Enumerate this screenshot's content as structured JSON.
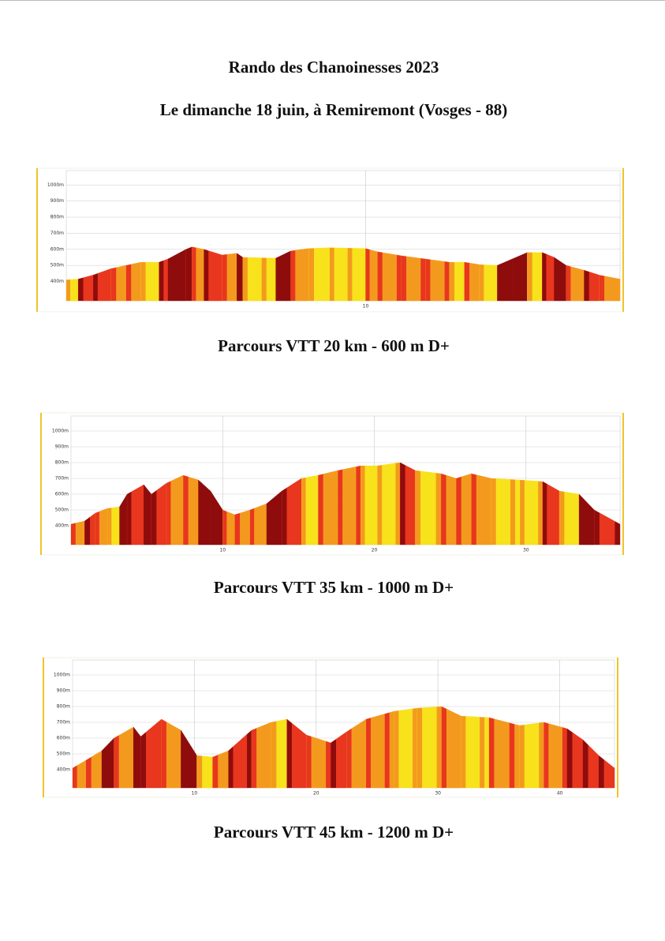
{
  "header": {
    "title": "Rando des Chanoinesses 2023",
    "subtitle": "Le dimanche 18 juin, à Remiremont (Vosges - 88)"
  },
  "chart_data": [
    {
      "type": "area",
      "title": "Parcours VTT 20 km - 600 m D+",
      "x": [
        0,
        0.4,
        0.9,
        1.5,
        2.0,
        2.5,
        3.1,
        3.4,
        4.0,
        4.2,
        4.6,
        5.2,
        5.7,
        5.9,
        7.0,
        7.5,
        8.1,
        8.8,
        10.0,
        10.4,
        11.2,
        12.0,
        12.8,
        13.3,
        13.8,
        14.4,
        14.9,
        15.4,
        15.9,
        16.3,
        16.7,
        17.3,
        17.8,
        18.5
      ],
      "values": [
        410,
        415,
        440,
        480,
        500,
        520,
        520,
        540,
        600,
        615,
        600,
        565,
        575,
        550,
        545,
        590,
        605,
        610,
        605,
        585,
        560,
        540,
        520,
        520,
        505,
        500,
        540,
        580,
        580,
        550,
        500,
        470,
        440,
        415
      ],
      "xlim": [
        0,
        18.5
      ],
      "xticks": [
        10
      ],
      "ylim": [
        280,
        1090
      ],
      "yticks": [
        {
          "value": 400,
          "label": "400m"
        },
        {
          "value": 500,
          "label": "500m"
        },
        {
          "value": 600,
          "label": "600m"
        },
        {
          "value": 700,
          "label": "700m"
        },
        {
          "value": 800,
          "label": "800m"
        },
        {
          "value": 900,
          "label": "900m"
        },
        {
          "value": 1000,
          "label": "1000m"
        }
      ],
      "grid": true,
      "colors": [
        "#f7e21c",
        "#f39a1e",
        "#e8361f",
        "#8e0c0c"
      ]
    },
    {
      "type": "area",
      "title": "Parcours VTT 35 km - 1000 m D+",
      "x": [
        0,
        0.9,
        1.6,
        2.4,
        3.2,
        3.7,
        4.8,
        5.3,
        6.3,
        7.4,
        8.4,
        9.2,
        10.0,
        10.8,
        11.8,
        12.9,
        13.9,
        15.2,
        16.3,
        17.6,
        19.1,
        20.2,
        21.7,
        22.7,
        24.4,
        25.4,
        26.4,
        27.7,
        29.6,
        31.1,
        32.2,
        33.5,
        34.5,
        36.2
      ],
      "values": [
        410,
        430,
        480,
        510,
        520,
        600,
        660,
        600,
        670,
        720,
        690,
        620,
        500,
        470,
        500,
        540,
        620,
        700,
        720,
        750,
        780,
        780,
        800,
        750,
        730,
        700,
        730,
        700,
        690,
        680,
        620,
        600,
        500,
        410
      ],
      "xlim": [
        0,
        36.2
      ],
      "xticks": [
        10,
        20,
        30
      ],
      "ylim": [
        280,
        1095
      ],
      "yticks": [
        {
          "value": 400,
          "label": "400m"
        },
        {
          "value": 500,
          "label": "500m"
        },
        {
          "value": 600,
          "label": "600m"
        },
        {
          "value": 700,
          "label": "700m"
        },
        {
          "value": 800,
          "label": "800m"
        },
        {
          "value": 900,
          "label": "900m"
        },
        {
          "value": 1000,
          "label": "1000m"
        }
      ],
      "grid": true,
      "colors": [
        "#f7e21c",
        "#f39a1e",
        "#e8361f",
        "#8e0c0c"
      ]
    },
    {
      "type": "area",
      "title": "Parcours VTT 45 km - 1200 m D+",
      "x": [
        0,
        1.1,
        2.4,
        3.4,
        5.0,
        5.6,
        7.3,
        8.9,
        10.2,
        11.5,
        12.8,
        14.7,
        16.3,
        17.6,
        19.2,
        21.2,
        22.5,
        24.1,
        26.4,
        28.3,
        30.3,
        31.9,
        34.2,
        36.7,
        38.7,
        40.6,
        41.9,
        43.2,
        44.5
      ],
      "values": [
        410,
        460,
        520,
        600,
        670,
        610,
        720,
        650,
        490,
        480,
        520,
        650,
        700,
        720,
        620,
        570,
        640,
        720,
        770,
        790,
        800,
        740,
        730,
        680,
        700,
        660,
        590,
        490,
        410
      ],
      "xlim": [
        0,
        44.5
      ],
      "xticks": [
        10,
        20,
        30,
        40
      ],
      "ylim": [
        285,
        1095
      ],
      "yticks": [
        {
          "value": 400,
          "label": "400m"
        },
        {
          "value": 500,
          "label": "500m"
        },
        {
          "value": 600,
          "label": "600m"
        },
        {
          "value": 700,
          "label": "700m"
        },
        {
          "value": 800,
          "label": "800m"
        },
        {
          "value": 900,
          "label": "900m"
        },
        {
          "value": 1000,
          "label": "1000m"
        }
      ],
      "grid": true,
      "colors": [
        "#f7e21c",
        "#f39a1e",
        "#e8361f",
        "#8e0c0c"
      ]
    }
  ]
}
